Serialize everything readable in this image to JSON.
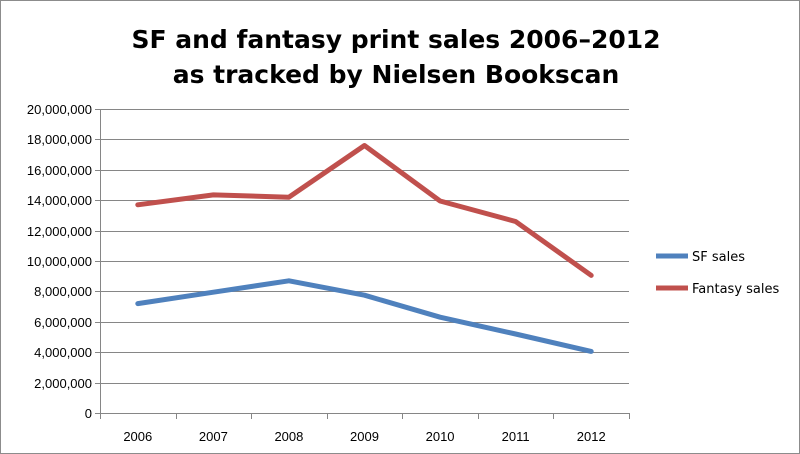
{
  "chart_data": {
    "type": "line",
    "title": "SF and fantasy print sales 2006–2012",
    "subtitle": "as tracked by Nielsen Bookscan",
    "xlabel": "",
    "ylabel": "",
    "categories": [
      "2006",
      "2007",
      "2008",
      "2009",
      "2010",
      "2011",
      "2012"
    ],
    "y_ticks": [
      "0",
      "2,000,000",
      "4,000,000",
      "6,000,000",
      "8,000,000",
      "10,000,000",
      "12,000,000",
      "14,000,000",
      "16,000,000",
      "18,000,000",
      "20,000,000"
    ],
    "ylim": [
      0,
      20000000
    ],
    "grid": true,
    "legend_position": "right",
    "series": [
      {
        "name": "SF sales",
        "color": "#4f81bd",
        "values": [
          7200000,
          7950000,
          8700000,
          7750000,
          6300000,
          5200000,
          4050000
        ]
      },
      {
        "name": "Fantasy sales",
        "color": "#c0504d",
        "values": [
          13700000,
          14350000,
          14200000,
          17600000,
          13950000,
          12600000,
          9050000
        ]
      }
    ]
  }
}
